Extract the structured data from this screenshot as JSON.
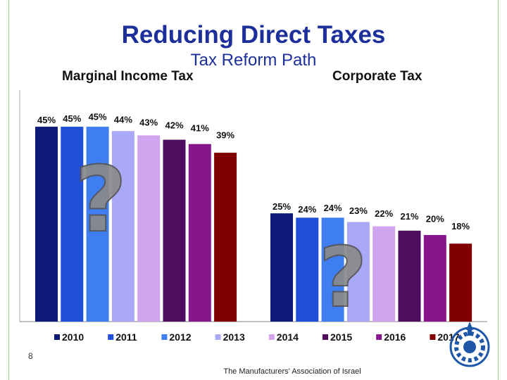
{
  "slide": {
    "title": "Reducing Direct Taxes",
    "subtitle": "Tax Reform Path",
    "page_number": "8",
    "footer": "The Manufacturers' Association of Israel"
  },
  "colors": {
    "series": [
      "#0d1a78",
      "#1f4fd8",
      "#3f7ef0",
      "#a9a9f7",
      "#d1a4ef",
      "#4e0d5e",
      "#86168c",
      "#800000"
    ],
    "question_mark": "#8a8a8a",
    "logo": "#1f57a8"
  },
  "icons": [
    "question-mark-icon",
    "association-logo-icon"
  ],
  "chart_data": {
    "type": "bar",
    "categories": [
      "Marginal Income Tax",
      "Corporate Tax"
    ],
    "series": [
      {
        "name": "2010",
        "values": [
          45,
          25
        ],
        "labels": [
          "45%",
          "25%"
        ]
      },
      {
        "name": "2011",
        "values": [
          45,
          24
        ],
        "labels": [
          "45%",
          "24%"
        ]
      },
      {
        "name": "2012",
        "values": [
          45,
          24
        ],
        "labels": [
          "45%",
          "24%"
        ]
      },
      {
        "name": "2013",
        "values": [
          44,
          23
        ],
        "labels": [
          "44%",
          "23%"
        ]
      },
      {
        "name": "2014",
        "values": [
          43,
          22
        ],
        "labels": [
          "43%",
          "22%"
        ]
      },
      {
        "name": "2015",
        "values": [
          42,
          21
        ],
        "labels": [
          "42%",
          "21%"
        ]
      },
      {
        "name": "2016",
        "values": [
          41,
          20
        ],
        "labels": [
          "41%",
          "20%"
        ]
      },
      {
        "name": "2017",
        "values": [
          39,
          18
        ],
        "labels": [
          "39%",
          "18%"
        ]
      }
    ],
    "ylim": [
      0,
      52
    ],
    "grid": false,
    "legend": "bottom"
  }
}
